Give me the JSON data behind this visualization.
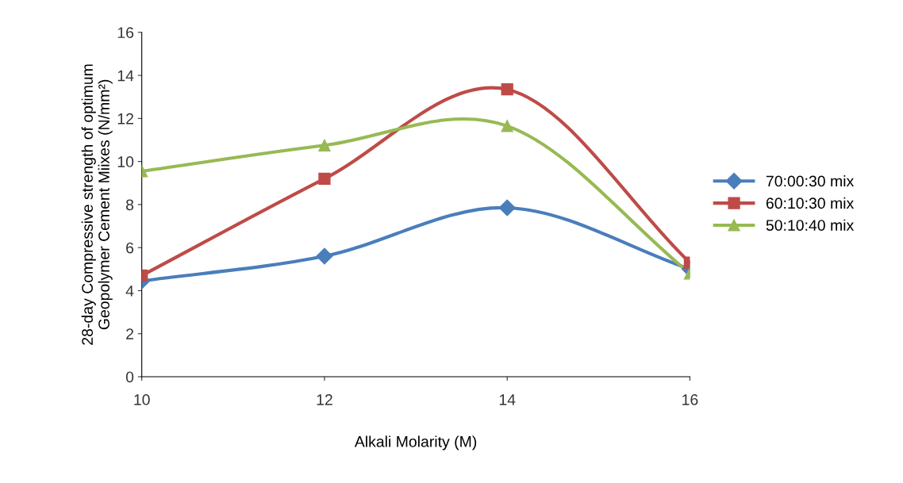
{
  "chart_data": {
    "type": "line",
    "xlabel": "Alkali Molarity (M)",
    "ylabel": "28-day Compressive strength of optimum\nGeopolymer Cement Miixes (N/mm²)",
    "x": [
      10,
      12,
      14,
      16
    ],
    "series": [
      {
        "name": "70:00:30 mix",
        "color": "#4a7ebb",
        "marker": "diamond",
        "values": [
          4.45,
          5.6,
          7.85,
          5.0
        ]
      },
      {
        "name": "60:10:30 mix",
        "color": "#be4b48",
        "marker": "square",
        "values": [
          4.7,
          9.2,
          13.35,
          5.3
        ]
      },
      {
        "name": "50:10:40 mix",
        "color": "#98b954",
        "marker": "triangle",
        "values": [
          9.55,
          10.75,
          11.65,
          4.8
        ]
      }
    ],
    "xlim": [
      10,
      16
    ],
    "xticks": [
      10,
      12,
      14,
      16
    ],
    "ylim": [
      0,
      16
    ],
    "yticks": [
      0,
      2,
      4,
      6,
      8,
      10,
      12,
      14,
      16
    ],
    "grid": false,
    "legend": "right",
    "line_style": "solid"
  }
}
